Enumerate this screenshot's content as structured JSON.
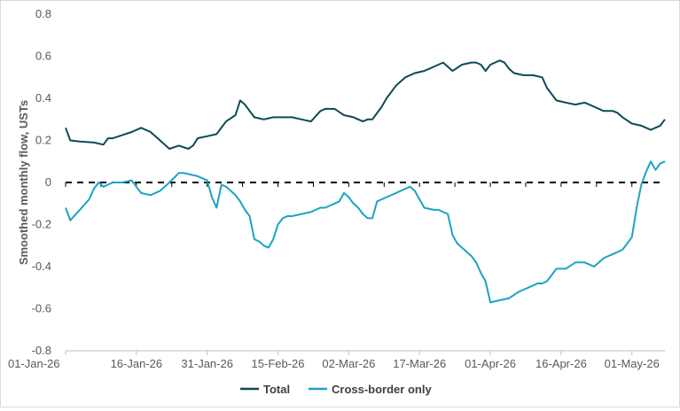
{
  "chart_data": {
    "type": "line",
    "title": "",
    "xlabel": "",
    "ylabel": "Smoothed monthly flow, USTs",
    "ylim": [
      -0.8,
      0.8
    ],
    "yticks": [
      "0.8",
      "0.6",
      "0.4",
      "0.2",
      "0",
      "-0.2",
      "-0.4",
      "-0.6",
      "-0.8"
    ],
    "ytick_values": [
      0.8,
      0.6,
      0.4,
      0.2,
      0,
      -0.2,
      -0.4,
      -0.6,
      -0.8
    ],
    "xticks": [
      "01-Jan-26",
      "16-Jan-26",
      "31-Jan-26",
      "15-Feb-26",
      "02-Mar-26",
      "17-Mar-26",
      "01-Apr-26",
      "16-Apr-26",
      "01-May-26"
    ],
    "x_range_days": [
      0,
      127
    ],
    "grid": false,
    "zero_line": "dashed",
    "legend_position": "bottom",
    "colors": {
      "Total": "#0d4a55",
      "Cross-border only": "#1ba3c6",
      "axis": "#bfbfbf",
      "zero": "#000000"
    },
    "series": [
      {
        "name": "Total",
        "x": [
          0,
          1,
          3,
          6,
          8,
          9,
          10,
          12,
          14,
          16,
          18,
          20,
          22,
          24,
          26,
          27,
          28,
          29,
          30,
          32,
          34,
          36,
          37,
          38,
          39,
          40,
          42,
          44,
          45,
          46,
          48,
          50,
          52,
          54,
          55,
          57,
          59,
          61,
          63,
          64,
          65,
          66,
          67,
          68,
          70,
          72,
          74,
          76,
          77,
          78,
          79,
          80,
          82,
          84,
          86,
          87,
          88,
          89,
          90,
          91,
          92,
          93,
          94,
          95,
          97,
          99,
          101,
          102,
          103,
          104,
          106,
          108,
          110,
          112,
          114,
          115,
          116,
          117,
          118,
          120,
          122,
          124,
          126,
          127
        ],
        "values": [
          0.26,
          0.2,
          0.195,
          0.19,
          0.18,
          0.21,
          0.21,
          0.225,
          0.24,
          0.26,
          0.24,
          0.2,
          0.16,
          0.175,
          0.16,
          0.175,
          0.21,
          0.215,
          0.22,
          0.23,
          0.29,
          0.32,
          0.39,
          0.37,
          0.34,
          0.31,
          0.3,
          0.31,
          0.31,
          0.31,
          0.31,
          0.3,
          0.29,
          0.34,
          0.35,
          0.35,
          0.32,
          0.31,
          0.29,
          0.3,
          0.3,
          0.33,
          0.36,
          0.4,
          0.46,
          0.5,
          0.52,
          0.53,
          0.54,
          0.55,
          0.56,
          0.57,
          0.53,
          0.56,
          0.57,
          0.57,
          0.56,
          0.53,
          0.56,
          0.57,
          0.58,
          0.57,
          0.54,
          0.52,
          0.51,
          0.51,
          0.5,
          0.45,
          0.42,
          0.39,
          0.38,
          0.37,
          0.38,
          0.36,
          0.34,
          0.34,
          0.34,
          0.33,
          0.31,
          0.28,
          0.27,
          0.25,
          0.27,
          0.3
        ]
      },
      {
        "name": "Cross-border only",
        "x": [
          0,
          1,
          3,
          5,
          6,
          7,
          8,
          9,
          10,
          12,
          14,
          15,
          16,
          18,
          20,
          22,
          24,
          25,
          26,
          27,
          28,
          29,
          30,
          31,
          32,
          33,
          34,
          35,
          36,
          37,
          38,
          39,
          40,
          41,
          42,
          43,
          44,
          45,
          46,
          47,
          48,
          50,
          52,
          53,
          54,
          55,
          56,
          57,
          58,
          59,
          60,
          61,
          62,
          63,
          64,
          65,
          66,
          68,
          70,
          72,
          73,
          74,
          76,
          78,
          79,
          80,
          81,
          82,
          83,
          84,
          85,
          86,
          87,
          88,
          89,
          90,
          92,
          94,
          96,
          98,
          99,
          100,
          101,
          102,
          104,
          106,
          108,
          110,
          112,
          114,
          116,
          118,
          120,
          121,
          122,
          123,
          124,
          125,
          126,
          127
        ],
        "values": [
          -0.12,
          -0.18,
          -0.13,
          -0.08,
          -0.03,
          0.0,
          -0.02,
          -0.01,
          0.0,
          0.0,
          0.01,
          -0.02,
          -0.05,
          -0.06,
          -0.04,
          0.0,
          0.045,
          0.045,
          0.04,
          0.035,
          0.03,
          0.02,
          0.01,
          -0.07,
          -0.12,
          -0.01,
          -0.02,
          -0.04,
          -0.06,
          -0.09,
          -0.13,
          -0.16,
          -0.27,
          -0.28,
          -0.3,
          -0.31,
          -0.27,
          -0.2,
          -0.17,
          -0.16,
          -0.16,
          -0.15,
          -0.14,
          -0.13,
          -0.12,
          -0.12,
          -0.11,
          -0.1,
          -0.09,
          -0.05,
          -0.07,
          -0.1,
          -0.12,
          -0.15,
          -0.17,
          -0.17,
          -0.09,
          -0.07,
          -0.05,
          -0.03,
          -0.02,
          -0.04,
          -0.12,
          -0.13,
          -0.13,
          -0.14,
          -0.15,
          -0.25,
          -0.29,
          -0.31,
          -0.33,
          -0.35,
          -0.38,
          -0.43,
          -0.47,
          -0.57,
          -0.56,
          -0.55,
          -0.52,
          -0.5,
          -0.49,
          -0.48,
          -0.48,
          -0.47,
          -0.41,
          -0.41,
          -0.38,
          -0.38,
          -0.4,
          -0.36,
          -0.34,
          -0.32,
          -0.26,
          -0.12,
          -0.01,
          0.05,
          0.1,
          0.06,
          0.09,
          0.1
        ]
      }
    ]
  },
  "legend": {
    "items": [
      {
        "label": "Total"
      },
      {
        "label": "Cross-border only"
      }
    ]
  }
}
